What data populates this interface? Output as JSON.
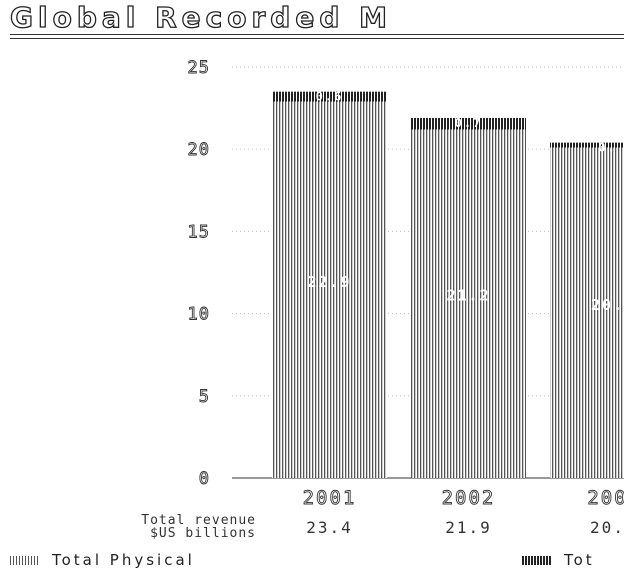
{
  "title": "Global Recorded M",
  "revenue_label_line1": "Total revenue",
  "revenue_label_line2": "$US billions",
  "legend": {
    "physical_label": "Total Physical",
    "digital_label": "Tot"
  },
  "colors": {
    "physical_stripe": "#555555",
    "digital_stripe": "#222222",
    "label_color": "#ffffff",
    "grid": "#bbbbbb"
  },
  "chart_data": {
    "type": "bar",
    "stacked": true,
    "title": "Global Recorded M",
    "categories": [
      "2001",
      "2002",
      "200"
    ],
    "series": [
      {
        "name": "Total Physical",
        "values": [
          22.9,
          21.2,
          20.1
        ],
        "labels": [
          "22.9",
          "21.2",
          "20."
        ]
      },
      {
        "name": "Tot",
        "values": [
          0.6,
          0.7,
          0.3
        ],
        "labels": [
          "0.6",
          "0.7",
          "0."
        ]
      }
    ],
    "totals": [
      "23.4",
      "21.9",
      "20."
    ],
    "yticks": [
      "0",
      "5",
      "10",
      "15",
      "20",
      "25"
    ],
    "ylim": [
      0,
      25
    ],
    "xlabel": "",
    "ylabel": "",
    "grid": true,
    "legend_position": "bottom"
  }
}
